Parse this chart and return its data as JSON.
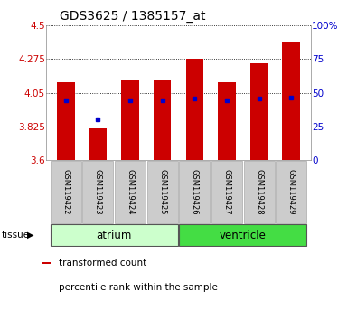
{
  "title": "GDS3625 / 1385157_at",
  "samples": [
    "GSM119422",
    "GSM119423",
    "GSM119424",
    "GSM119425",
    "GSM119426",
    "GSM119427",
    "GSM119428",
    "GSM119429"
  ],
  "bar_bottoms": [
    3.6,
    3.6,
    3.6,
    3.6,
    3.6,
    3.6,
    3.6,
    3.6
  ],
  "bar_tops": [
    4.12,
    3.81,
    4.13,
    4.13,
    4.275,
    4.12,
    4.25,
    4.385
  ],
  "percentile_values": [
    4.0,
    3.875,
    4.0,
    4.0,
    4.01,
    4.0,
    4.01,
    4.02
  ],
  "ylim": [
    3.6,
    4.5
  ],
  "yticks": [
    3.6,
    3.825,
    4.05,
    4.275,
    4.5
  ],
  "ytick_labels": [
    "3.6",
    "3.825",
    "4.05",
    "4.275",
    "4.5"
  ],
  "right_yticks": [
    0,
    25,
    50,
    75,
    100
  ],
  "right_ytick_labels": [
    "0",
    "25",
    "50",
    "75",
    "100%"
  ],
  "bar_color": "#cc0000",
  "percentile_color": "#0000cc",
  "tissue_groups": [
    {
      "label": "atrium",
      "start": 0,
      "end": 3,
      "color": "#ccffcc"
    },
    {
      "label": "ventricle",
      "start": 4,
      "end": 7,
      "color": "#44dd44"
    }
  ],
  "left_axis_color": "#cc0000",
  "right_axis_color": "#0000cc",
  "grid_color": "#000000",
  "sample_bg": "#cccccc",
  "tissue_label": "tissue",
  "legend_items": [
    {
      "label": "transformed count",
      "color": "#cc0000"
    },
    {
      "label": "percentile rank within the sample",
      "color": "#0000cc"
    }
  ]
}
